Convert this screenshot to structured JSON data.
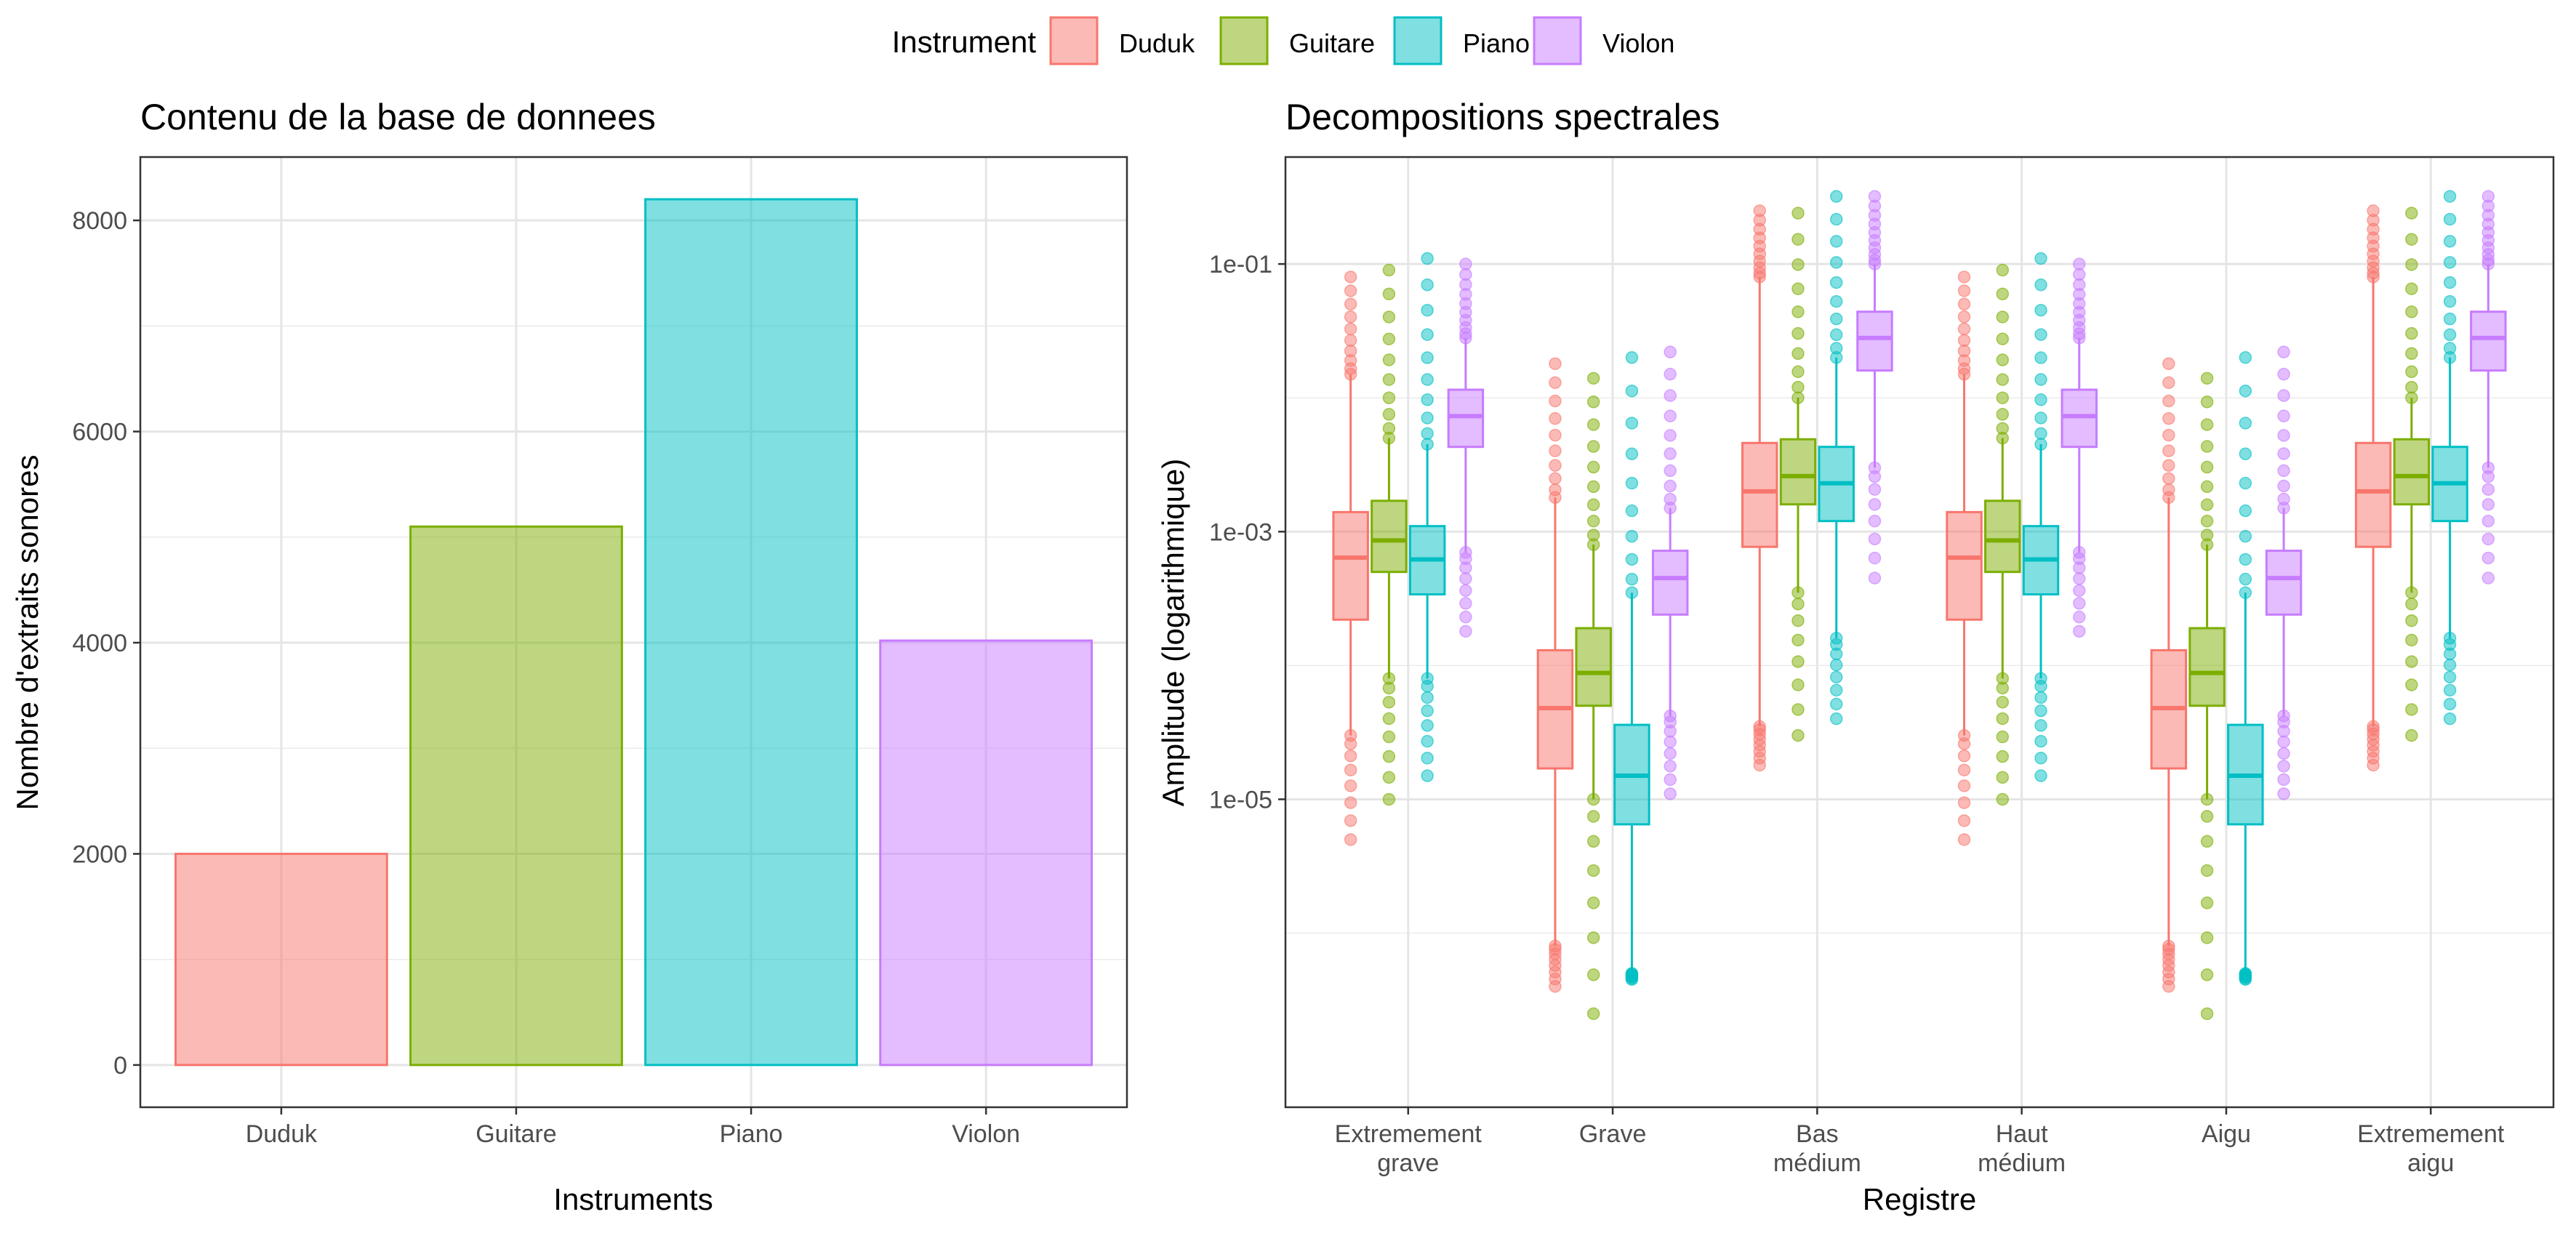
{
  "legend": {
    "title": "Instrument",
    "items": [
      {
        "label": "Duduk",
        "color": "#F8766D"
      },
      {
        "label": "Guitare",
        "color": "#7CAE00"
      },
      {
        "label": "Piano",
        "color": "#00BFC4"
      },
      {
        "label": "Violon",
        "color": "#C77CFF"
      }
    ],
    "placement": "top-center"
  },
  "chart_data": [
    {
      "type": "bar",
      "title": "Contenu de la base de donnees",
      "xlabel": "Instruments",
      "ylabel": "Nombre d'extraits sonores",
      "categories": [
        "Duduk",
        "Guitare",
        "Piano",
        "Violon"
      ],
      "values": [
        2000,
        5100,
        8200,
        4020
      ],
      "ylim": [
        -400,
        8600
      ],
      "yticks": [
        0,
        2000,
        4000,
        6000,
        8000
      ],
      "ytick_labels": [
        "0",
        "2000",
        "4000",
        "6000",
        "8000"
      ],
      "grid": true
    },
    {
      "type": "boxplot",
      "title": "Decompositions spectrales",
      "xlabel": "Registre",
      "ylabel": "Amplitude (logarithmique)",
      "yscale": "log10",
      "ylim": [
        5e-08,
        0.63
      ],
      "yticks": [
        1e-05,
        0.001,
        0.1
      ],
      "ytick_labels": [
        "1e-05",
        "1e-03",
        "1e-01"
      ],
      "categories": [
        [
          "Extremement",
          "grave"
        ],
        [
          "Grave"
        ],
        [
          "Bas",
          "médium"
        ],
        [
          "Haut",
          "médium"
        ],
        [
          "Aigu"
        ],
        [
          "Extremement",
          "aigu"
        ]
      ],
      "series": [
        {
          "name": "Duduk",
          "boxes": [
            {
              "whisker_low": 3e-05,
              "q1": 0.00022,
              "median": 0.00064,
              "q3": 0.0014,
              "whisker_high": 0.015,
              "outlier_low": 5e-06,
              "outlier_high": 0.08
            },
            {
              "whisker_low": 8e-07,
              "q1": 1.7e-05,
              "median": 4.8e-05,
              "q3": 0.00013,
              "whisker_high": 0.0018,
              "outlier_low": 4e-07,
              "outlier_high": 0.018
            },
            {
              "whisker_low": 3.5e-05,
              "q1": 0.00077,
              "median": 0.002,
              "q3": 0.0046,
              "whisker_high": 0.08,
              "outlier_low": 1.8e-05,
              "outlier_high": 0.25
            },
            {
              "whisker_low": 3e-05,
              "q1": 0.00022,
              "median": 0.00064,
              "q3": 0.0014,
              "whisker_high": 0.015,
              "outlier_low": 5e-06,
              "outlier_high": 0.08
            },
            {
              "whisker_low": 8e-07,
              "q1": 1.7e-05,
              "median": 4.8e-05,
              "q3": 0.00013,
              "whisker_high": 0.0018,
              "outlier_low": 4e-07,
              "outlier_high": 0.018
            },
            {
              "whisker_low": 3.5e-05,
              "q1": 0.00077,
              "median": 0.002,
              "q3": 0.0046,
              "whisker_high": 0.08,
              "outlier_low": 1.8e-05,
              "outlier_high": 0.25
            }
          ]
        },
        {
          "name": "Guitare",
          "boxes": [
            {
              "whisker_low": 8e-05,
              "q1": 0.0005,
              "median": 0.00086,
              "q3": 0.0017,
              "whisker_high": 0.005,
              "outlier_low": 1e-05,
              "outlier_high": 0.09
            },
            {
              "whisker_low": 1e-05,
              "q1": 5e-05,
              "median": 8.8e-05,
              "q3": 0.00019,
              "whisker_high": 0.0008,
              "outlier_low": 2.5e-07,
              "outlier_high": 0.014
            },
            {
              "whisker_low": 0.00035,
              "q1": 0.0016,
              "median": 0.0026,
              "q3": 0.0049,
              "whisker_high": 0.01,
              "outlier_low": 3e-05,
              "outlier_high": 0.24
            },
            {
              "whisker_low": 8e-05,
              "q1": 0.0005,
              "median": 0.00086,
              "q3": 0.0017,
              "whisker_high": 0.005,
              "outlier_low": 1e-05,
              "outlier_high": 0.09
            },
            {
              "whisker_low": 1e-05,
              "q1": 5e-05,
              "median": 8.8e-05,
              "q3": 0.00019,
              "whisker_high": 0.0008,
              "outlier_low": 2.5e-07,
              "outlier_high": 0.014
            },
            {
              "whisker_low": 0.00035,
              "q1": 0.0016,
              "median": 0.0026,
              "q3": 0.0049,
              "whisker_high": 0.01,
              "outlier_low": 3e-05,
              "outlier_high": 0.24
            }
          ]
        },
        {
          "name": "Piano",
          "boxes": [
            {
              "whisker_low": 8e-05,
              "q1": 0.00034,
              "median": 0.00062,
              "q3": 0.0011,
              "whisker_high": 0.0045,
              "outlier_low": 1.5e-05,
              "outlier_high": 0.11
            },
            {
              "whisker_low": 5e-07,
              "q1": 6.5e-06,
              "median": 1.5e-05,
              "q3": 3.6e-05,
              "whisker_high": 0.00035,
              "outlier_low": 4.5e-07,
              "outlier_high": 0.02
            },
            {
              "whisker_low": 0.00016,
              "q1": 0.0012,
              "median": 0.0023,
              "q3": 0.0043,
              "whisker_high": 0.02,
              "outlier_low": 4e-05,
              "outlier_high": 0.32
            },
            {
              "whisker_low": 8e-05,
              "q1": 0.00034,
              "median": 0.00062,
              "q3": 0.0011,
              "whisker_high": 0.0045,
              "outlier_low": 1.5e-05,
              "outlier_high": 0.11
            },
            {
              "whisker_low": 5e-07,
              "q1": 6.5e-06,
              "median": 1.5e-05,
              "q3": 3.6e-05,
              "whisker_high": 0.00035,
              "outlier_low": 4.5e-07,
              "outlier_high": 0.02
            },
            {
              "whisker_low": 0.00016,
              "q1": 0.0012,
              "median": 0.0023,
              "q3": 0.0043,
              "whisker_high": 0.02,
              "outlier_low": 4e-05,
              "outlier_high": 0.32
            }
          ]
        },
        {
          "name": "Violon",
          "boxes": [
            {
              "whisker_low": 0.0007,
              "q1": 0.0043,
              "median": 0.0073,
              "q3": 0.0115,
              "whisker_high": 0.028,
              "outlier_low": 0.00018,
              "outlier_high": 0.1
            },
            {
              "whisker_low": 4.2e-05,
              "q1": 0.00024,
              "median": 0.00045,
              "q3": 0.00072,
              "whisker_high": 0.0015,
              "outlier_low": 1.1e-05,
              "outlier_high": 0.022
            },
            {
              "whisker_low": 0.003,
              "q1": 0.016,
              "median": 0.028,
              "q3": 0.044,
              "whisker_high": 0.1,
              "outlier_low": 0.00045,
              "outlier_high": 0.32
            },
            {
              "whisker_low": 0.0007,
              "q1": 0.0043,
              "median": 0.0073,
              "q3": 0.0115,
              "whisker_high": 0.028,
              "outlier_low": 0.00018,
              "outlier_high": 0.1
            },
            {
              "whisker_low": 4.2e-05,
              "q1": 0.00024,
              "median": 0.00045,
              "q3": 0.00072,
              "whisker_high": 0.0015,
              "outlier_low": 1.1e-05,
              "outlier_high": 0.022
            },
            {
              "whisker_low": 0.003,
              "q1": 0.016,
              "median": 0.028,
              "q3": 0.044,
              "whisker_high": 0.1,
              "outlier_low": 0.00045,
              "outlier_high": 0.32
            }
          ]
        }
      ],
      "grid": true
    }
  ]
}
